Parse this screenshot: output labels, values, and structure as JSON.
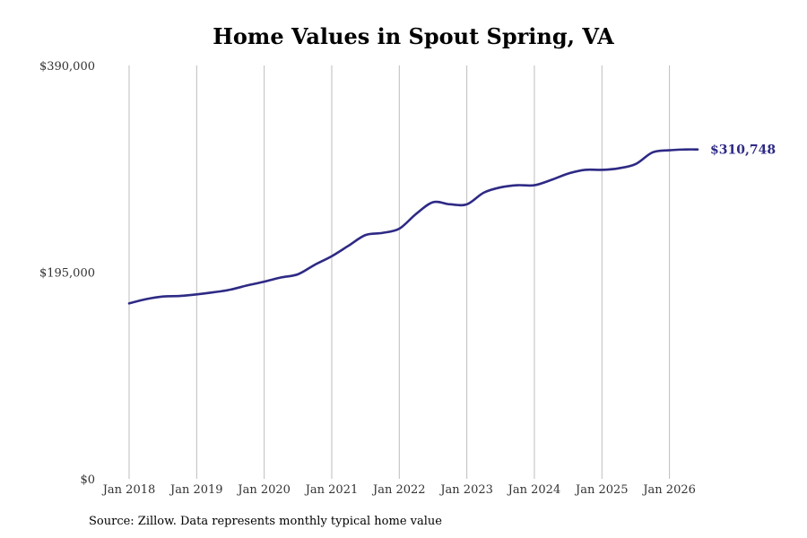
{
  "chart_data": {
    "type": "line",
    "title": "Home Values in Spout Spring, VA",
    "xlabel": "",
    "ylabel": "",
    "x_ticks": [
      "Jan 2018",
      "Jan 2019",
      "Jan 2020",
      "Jan 2021",
      "Jan 2022",
      "Jan 2023",
      "Jan 2024",
      "Jan 2025",
      "Jan 2026"
    ],
    "y_ticks": [
      "$0",
      "$195,000",
      "$390,000"
    ],
    "ylim": [
      0,
      390000
    ],
    "xlim": [
      "Jan 2018",
      "Jun 2026"
    ],
    "grid": "vertical",
    "line_color": "#2e2a85",
    "end_label": "$310,748",
    "x": [
      "2018-01",
      "2018-04",
      "2018-07",
      "2018-10",
      "2019-01",
      "2019-04",
      "2019-07",
      "2019-10",
      "2020-01",
      "2020-04",
      "2020-07",
      "2020-10",
      "2021-01",
      "2021-04",
      "2021-07",
      "2021-10",
      "2022-01",
      "2022-04",
      "2022-07",
      "2022-10",
      "2023-01",
      "2023-04",
      "2023-07",
      "2023-10",
      "2024-01",
      "2024-04",
      "2024-07",
      "2024-10",
      "2025-01",
      "2025-04",
      "2025-07",
      "2025-10",
      "2026-01",
      "2026-04",
      "2026-06"
    ],
    "values": [
      165500,
      169500,
      172000,
      172500,
      174000,
      176000,
      178500,
      182500,
      186000,
      190000,
      193000,
      202000,
      210000,
      220000,
      230000,
      232000,
      236000,
      250000,
      261000,
      259000,
      259000,
      270000,
      275000,
      277000,
      277000,
      282000,
      288000,
      291500,
      291500,
      293000,
      297000,
      308000,
      310000,
      310748,
      310748
    ]
  },
  "source_note": "Source: Zillow. Data represents monthly typical home value"
}
